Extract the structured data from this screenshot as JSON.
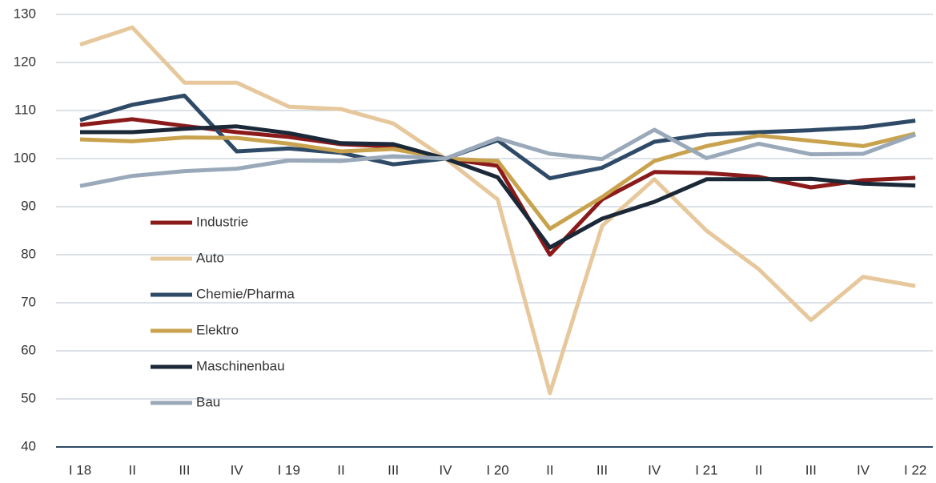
{
  "chart_data": {
    "type": "line",
    "categories": [
      "I 18",
      "II",
      "III",
      "IV",
      "I 19",
      "II",
      "III",
      "IV",
      "I 20",
      "II",
      "III",
      "IV",
      "I 21",
      "II",
      "III",
      "IV",
      "I 22"
    ],
    "series": [
      {
        "name": "Industrie",
        "color": "#8b1a1a",
        "values": [
          107,
          108.2,
          106.8,
          105.5,
          104.5,
          103,
          102.5,
          100,
          98.5,
          80,
          91.5,
          97.2,
          97,
          96.2,
          94,
          95.5,
          96
        ]
      },
      {
        "name": "Auto",
        "color": "#e6c89c",
        "values": [
          123.7,
          127.3,
          115.8,
          115.8,
          110.8,
          110.3,
          107.3,
          100,
          91.5,
          51.2,
          86,
          95.7,
          85,
          77,
          66.4,
          75.4,
          73.5
        ]
      },
      {
        "name": "Chemie/Pharma",
        "color": "#2e4a66",
        "values": [
          108,
          111.2,
          113.1,
          101.5,
          102.1,
          101.2,
          98.8,
          100,
          103.8,
          95.9,
          98.1,
          103.5,
          105,
          105.5,
          105.9,
          106.5,
          107.9
        ]
      },
      {
        "name": "Elektro",
        "color": "#c9a24e",
        "values": [
          104,
          103.6,
          104.4,
          104.3,
          103.1,
          101.5,
          102,
          100,
          99.5,
          85.4,
          92,
          99.5,
          102.6,
          104.8,
          103.7,
          102.6,
          105.2
        ]
      },
      {
        "name": "Maschinenbau",
        "color": "#1a2838",
        "values": [
          105.5,
          105.5,
          106.2,
          106.7,
          105.3,
          103.2,
          103,
          100,
          96.1,
          81.5,
          87.5,
          91,
          95.7,
          95.7,
          95.8,
          94.8,
          94.4
        ]
      },
      {
        "name": "Bau",
        "color": "#9aa9ba",
        "values": [
          94.3,
          96.4,
          97.4,
          97.9,
          99.6,
          99.5,
          100.5,
          100,
          104.2,
          101,
          99.9,
          106,
          100.1,
          103.1,
          100.9,
          101,
          105
        ]
      }
    ],
    "ylim": [
      40,
      130
    ],
    "yticks": [
      40,
      50,
      60,
      70,
      80,
      90,
      100,
      110,
      120,
      130
    ],
    "grid": true
  }
}
